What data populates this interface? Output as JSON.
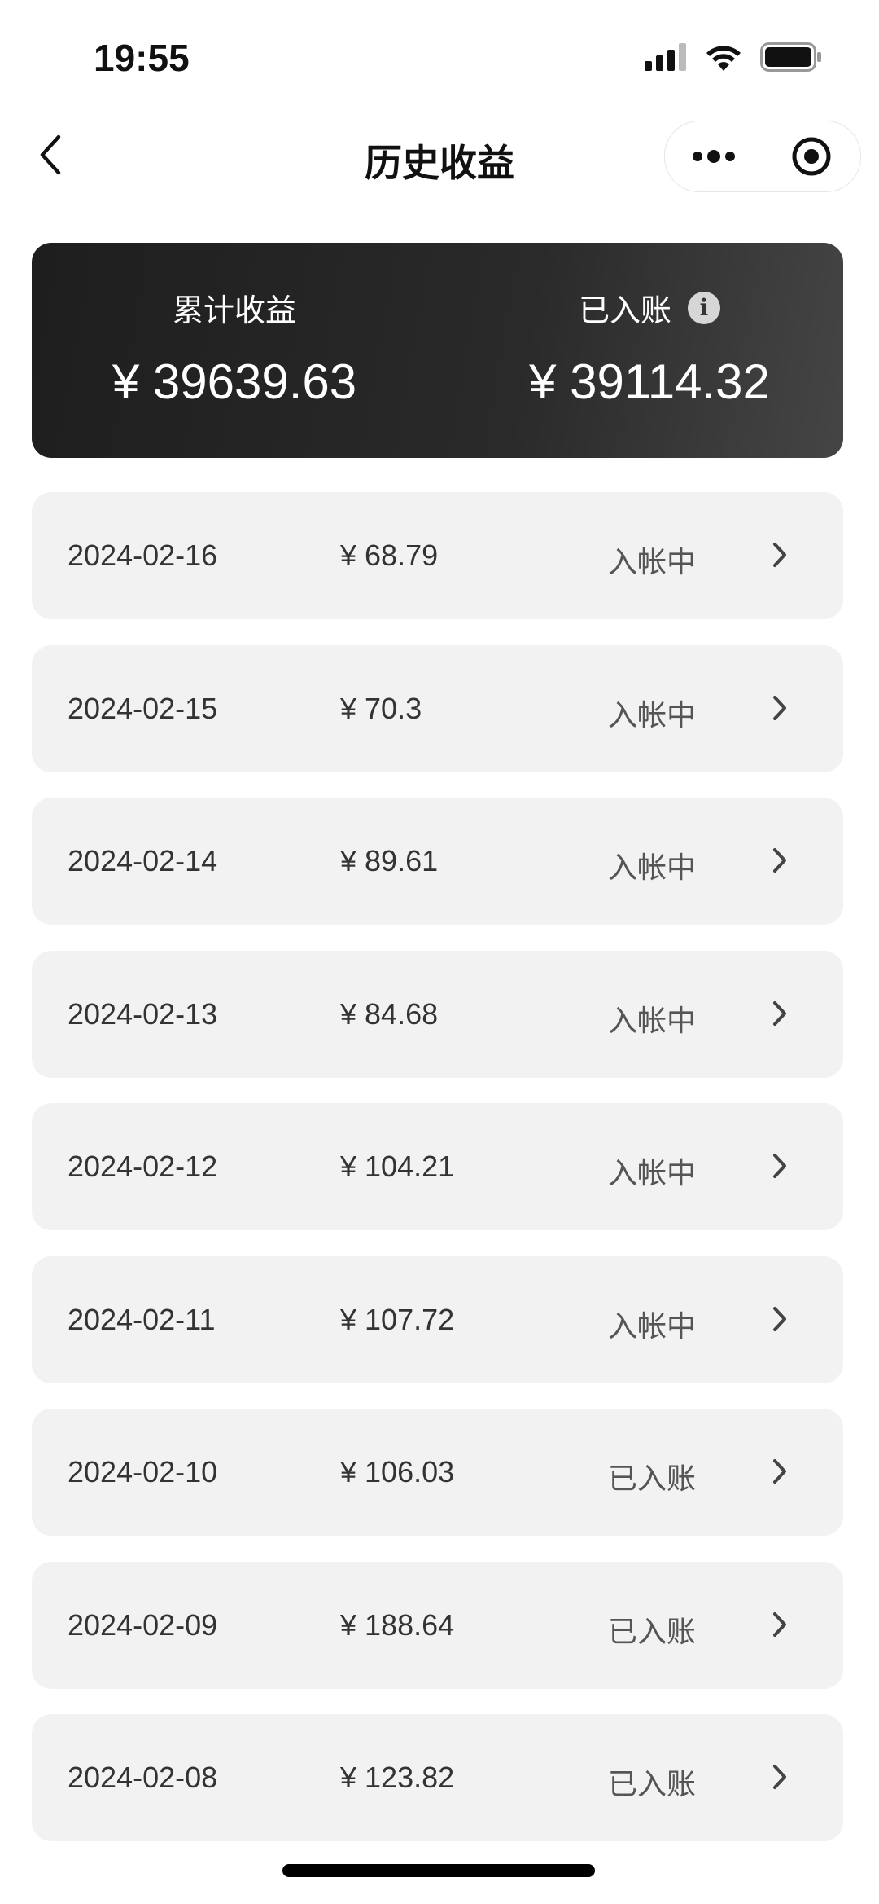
{
  "status_bar": {
    "time": "19:55",
    "icons": [
      "signal-icon",
      "wifi-icon",
      "battery-icon"
    ]
  },
  "nav": {
    "title": "历史收益",
    "back_icon": "chevron-left-icon",
    "more_icon": "more-dots-icon",
    "close_icon": "target-circle-icon"
  },
  "summary": {
    "total_label": "累计收益",
    "total_value": "¥ 39639.63",
    "credited_label": "已入账",
    "credited_value": "¥ 39114.32",
    "info_icon": "info-icon"
  },
  "records": [
    {
      "date": "2024-02-16",
      "amount": "¥ 68.79",
      "status": "入帐中"
    },
    {
      "date": "2024-02-15",
      "amount": "¥ 70.3",
      "status": "入帐中"
    },
    {
      "date": "2024-02-14",
      "amount": "¥ 89.61",
      "status": "入帐中"
    },
    {
      "date": "2024-02-13",
      "amount": "¥ 84.68",
      "status": "入帐中"
    },
    {
      "date": "2024-02-12",
      "amount": "¥ 104.21",
      "status": "入帐中"
    },
    {
      "date": "2024-02-11",
      "amount": "¥ 107.72",
      "status": "入帐中"
    },
    {
      "date": "2024-02-10",
      "amount": "¥ 106.03",
      "status": "已入账"
    },
    {
      "date": "2024-02-09",
      "amount": "¥ 188.64",
      "status": "已入账"
    },
    {
      "date": "2024-02-08",
      "amount": "¥ 123.82",
      "status": "已入账"
    }
  ]
}
